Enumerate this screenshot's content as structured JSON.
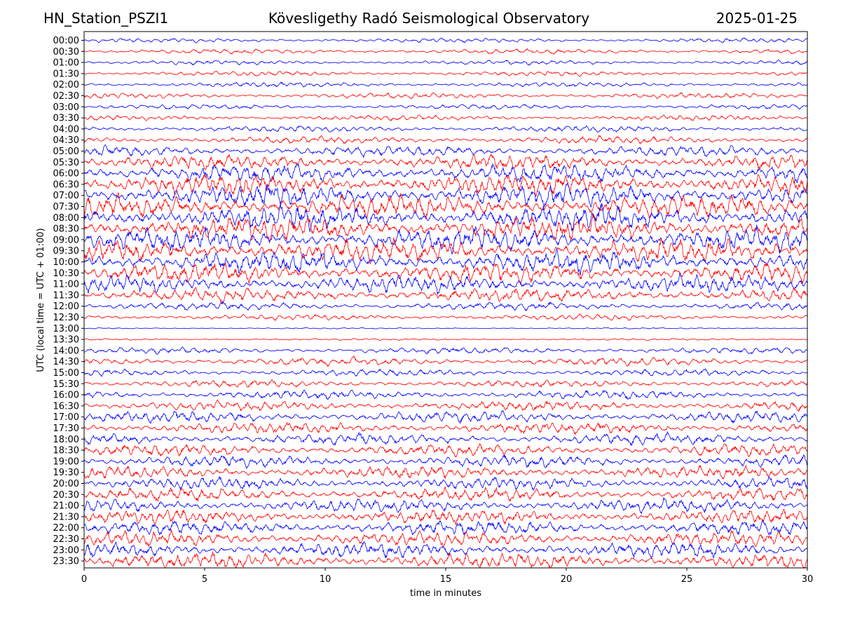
{
  "header": {
    "station": "HN_Station_PSZI1",
    "observatory": "Kövesligethy Radó Seismological Observatory",
    "date": "2025-01-25"
  },
  "chart_data": {
    "type": "line",
    "title": "Kövesligethy Radó Seismological Observatory",
    "xlabel": "time in minutes",
    "ylabel": "UTC (local time = UTC + 01:00)",
    "xlim": [
      0,
      30
    ],
    "x_ticks": [
      "0",
      "5",
      "10",
      "15",
      "20",
      "25",
      "30"
    ],
    "row_labels": [
      "00:00",
      "00:30",
      "01:00",
      "01:30",
      "02:00",
      "02:30",
      "03:00",
      "03:30",
      "04:00",
      "04:30",
      "05:00",
      "05:30",
      "06:00",
      "06:30",
      "07:00",
      "07:30",
      "08:00",
      "08:30",
      "09:00",
      "09:30",
      "10:00",
      "10:30",
      "11:00",
      "11:30",
      "12:00",
      "12:30",
      "13:00",
      "13:30",
      "14:00",
      "14:30",
      "15:00",
      "15:30",
      "16:00",
      "16:30",
      "17:00",
      "17:30",
      "18:00",
      "18:30",
      "19:00",
      "19:30",
      "20:00",
      "20:30",
      "21:00",
      "21:30",
      "22:00",
      "22:30",
      "23:00",
      "23:30"
    ],
    "trace_colors": [
      "#0000ff",
      "#ff0000"
    ],
    "relative_amplitude": [
      0.9,
      1.0,
      0.9,
      1.0,
      1.0,
      1.1,
      1.0,
      1.1,
      1.3,
      1.5,
      2.2,
      3.0,
      3.8,
      4.2,
      4.5,
      4.7,
      4.8,
      4.8,
      4.7,
      4.6,
      4.4,
      4.0,
      3.5,
      2.8,
      1.6,
      1.2,
      0.3,
      0.4,
      1.3,
      1.7,
      1.4,
      1.5,
      1.8,
      2.0,
      2.3,
      2.3,
      2.3,
      2.4,
      2.4,
      2.5,
      2.5,
      2.6,
      2.7,
      2.8,
      2.9,
      3.0,
      3.0,
      3.2
    ],
    "grid": false,
    "legend": "none"
  }
}
